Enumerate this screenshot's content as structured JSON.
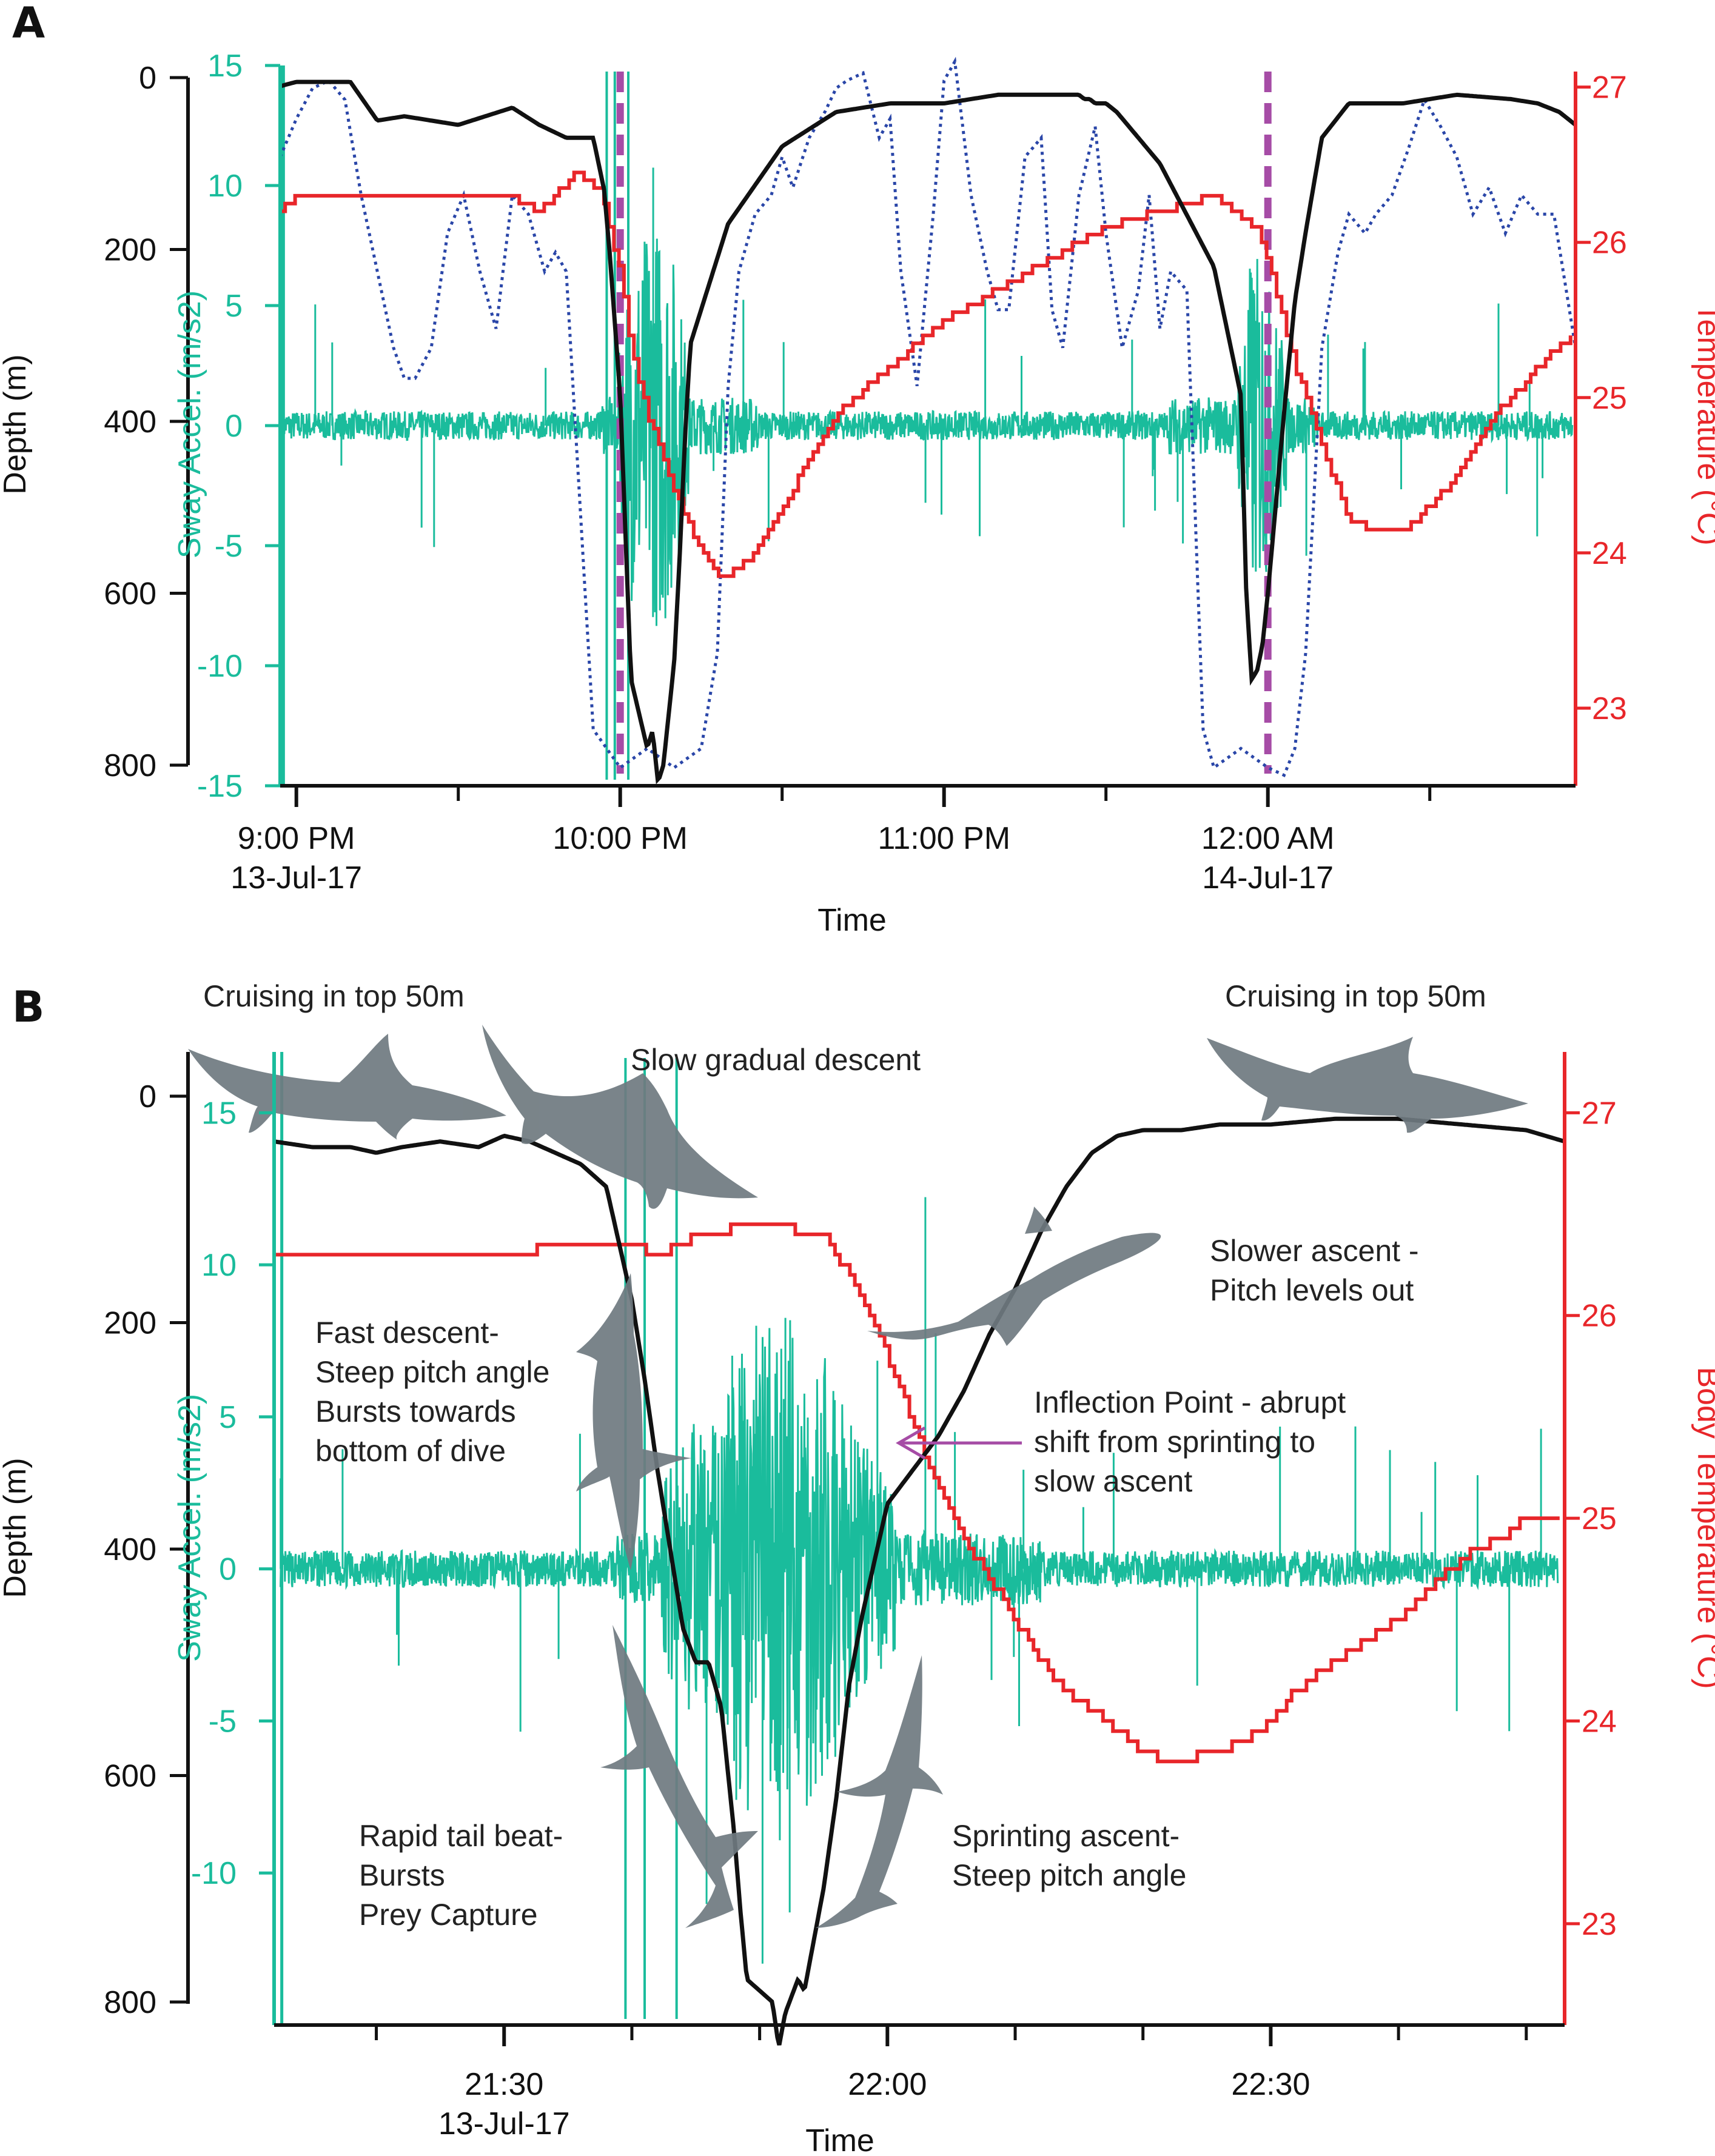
{
  "colors": {
    "depth": "#111111",
    "sway": "#1abc9c",
    "temperature": "#e8262a",
    "pitch": "#2a46a8",
    "marker": "#a64ca6",
    "arrow": "#a64ca6",
    "shark": "#6f7a80"
  },
  "chart_data": [
    {
      "panel": "A",
      "type": "line",
      "xlabel": "Time",
      "ylabel_left": "Depth (m)",
      "ylabel_sway": "Sway Accel. (m/s2)",
      "ylabel_right": "Temperature (°C)",
      "x_ticks": [
        {
          "line1": "9:00 PM",
          "line2": "13-Jul-17"
        },
        {
          "line1": "10:00 PM",
          "line2": ""
        },
        {
          "line1": "11:00 PM",
          "line2": ""
        },
        {
          "line1": "12:00 AM",
          "line2": "14-Jul-17"
        }
      ],
      "x_tick_minutes": [
        0,
        60,
        120,
        180
      ],
      "xlim_minutes": [
        -3,
        237
      ],
      "depth_ticks": [
        "0",
        "200",
        "400",
        "600",
        "800"
      ],
      "depth_lim": [
        0,
        800
      ],
      "sway_ticks": [
        "15",
        "10",
        "5",
        "0",
        "-5",
        "-10",
        "-15"
      ],
      "sway_lim": [
        -15,
        15
      ],
      "temp_ticks": [
        "27",
        "26",
        "25",
        "24",
        "23"
      ],
      "temp_lim": [
        22.5,
        27.1
      ],
      "vertical_markers_minutes": [
        60,
        180
      ],
      "depth_series": {
        "x_min": [
          -3,
          0,
          5,
          10,
          15,
          20,
          30,
          40,
          45,
          50,
          55,
          57,
          58,
          60,
          62,
          65,
          66,
          67,
          68,
          69,
          70,
          71,
          72,
          73,
          75,
          80,
          90,
          100,
          110,
          120,
          130,
          140,
          145,
          146,
          147,
          148,
          150,
          152,
          160,
          170,
          175,
          176,
          177,
          178,
          179,
          180,
          183,
          185,
          187,
          190,
          195,
          205,
          215,
          225,
          230,
          234,
          237
        ],
        "depth_m": [
          10,
          5,
          5,
          5,
          50,
          45,
          55,
          35,
          55,
          70,
          70,
          130,
          200,
          370,
          700,
          780,
          760,
          820,
          800,
          740,
          680,
          560,
          420,
          310,
          270,
          170,
          80,
          40,
          30,
          30,
          20,
          20,
          20,
          25,
          25,
          30,
          30,
          40,
          100,
          220,
          370,
          600,
          700,
          690,
          660,
          600,
          390,
          260,
          180,
          70,
          30,
          30,
          20,
          25,
          30,
          40,
          55
        ]
      },
      "temp_series": {
        "x_min": [
          -3,
          0,
          5,
          10,
          20,
          30,
          40,
          45,
          52,
          56,
          58,
          60,
          62,
          65,
          70,
          75,
          78,
          80,
          85,
          90,
          100,
          110,
          120,
          130,
          140,
          150,
          160,
          170,
          174,
          178,
          180,
          182,
          185,
          190,
          195,
          200,
          205,
          210,
          215,
          220,
          225,
          230,
          234,
          237
        ],
        "temp_c": [
          26.2,
          26.3,
          26.3,
          26.3,
          26.3,
          26.3,
          26.3,
          26.2,
          26.45,
          26.35,
          26.1,
          25.8,
          25.3,
          24.9,
          24.4,
          24.0,
          23.85,
          23.85,
          24.0,
          24.3,
          24.9,
          25.2,
          25.5,
          25.7,
          25.9,
          26.1,
          26.2,
          26.3,
          26.2,
          26.1,
          25.9,
          25.6,
          25.2,
          24.7,
          24.2,
          24.15,
          24.15,
          24.3,
          24.5,
          24.8,
          25.0,
          25.2,
          25.35,
          25.4
        ]
      },
      "pitch_series": {
        "x_min": [
          -3,
          0,
          3,
          6,
          9,
          12,
          15,
          18,
          20,
          22,
          25,
          28,
          31,
          34,
          37,
          40,
          43,
          46,
          48,
          50,
          55,
          60,
          65,
          70,
          75,
          78,
          80,
          82,
          85,
          88,
          90,
          92,
          95,
          98,
          100,
          102,
          105,
          108,
          110,
          112,
          115,
          118,
          120,
          122,
          125,
          128,
          130,
          132,
          135,
          138,
          140,
          142,
          145,
          148,
          150,
          153,
          156,
          158,
          160,
          162,
          165,
          168,
          170,
          175,
          180,
          183,
          185,
          187,
          190,
          193,
          195,
          198,
          200,
          203,
          206,
          209,
          212,
          215,
          218,
          221,
          224,
          227,
          230,
          233,
          237
        ],
        "pitch_deg": [
          70,
          80,
          88,
          90,
          85,
          60,
          40,
          20,
          12,
          12,
          20,
          50,
          60,
          40,
          25,
          60,
          55,
          40,
          45,
          40,
          -80,
          -90,
          -85,
          -90,
          -85,
          -60,
          10,
          40,
          55,
          60,
          70,
          62,
          75,
          82,
          88,
          90,
          92,
          75,
          80,
          40,
          10,
          55,
          90,
          95,
          60,
          40,
          30,
          30,
          70,
          75,
          30,
          20,
          60,
          78,
          50,
          20,
          35,
          60,
          25,
          40,
          35,
          -80,
          -90,
          -85,
          -90,
          -92,
          -85,
          -60,
          20,
          45,
          55,
          50,
          55,
          60,
          72,
          85,
          78,
          70,
          55,
          62,
          50,
          60,
          55,
          55,
          20
        ]
      }
    },
    {
      "panel": "B",
      "type": "line",
      "xlabel": "Time",
      "ylabel_left": "Depth (m)",
      "ylabel_sway": "Sway Accel. (m/s2)",
      "ylabel_right": "Body Temperature (°C)",
      "x_ticks": [
        {
          "line1": "21:30",
          "line2": "13-Jul-17"
        },
        {
          "line1": "22:00",
          "line2": ""
        },
        {
          "line1": "22:30",
          "line2": ""
        }
      ],
      "x_tick_minutes": [
        30,
        60,
        90
      ],
      "xlim_minutes": [
        12,
        113
      ],
      "depth_ticks": [
        "0",
        "200",
        "400",
        "600",
        "800"
      ],
      "depth_lim": [
        0,
        800
      ],
      "sway_ticks": [
        "15",
        "10",
        "5",
        "0",
        "-5",
        "-10"
      ],
      "sway_lim": [
        -15,
        17
      ],
      "temp_ticks": [
        "27",
        "26",
        "25",
        "24",
        "23"
      ],
      "temp_lim": [
        22.5,
        27.3
      ],
      "depth_series": {
        "x_min": [
          12,
          15,
          18,
          20,
          22,
          25,
          28,
          30,
          32,
          34,
          36,
          38,
          40,
          41,
          42,
          43,
          44,
          45,
          46,
          47,
          48,
          48.5,
          49,
          50,
          51,
          51.5,
          52,
          53,
          53.5,
          54,
          55,
          56,
          57,
          58,
          60,
          62,
          64,
          66,
          68,
          70,
          72,
          74,
          76,
          78,
          80,
          83,
          86,
          90,
          95,
          100,
          105,
          110,
          113
        ],
        "depth_m": [
          40,
          45,
          45,
          50,
          45,
          40,
          45,
          35,
          40,
          50,
          60,
          80,
          180,
          250,
          330,
          400,
          470,
          500,
          500,
          540,
          650,
          720,
          780,
          790,
          800,
          840,
          810,
          780,
          790,
          760,
          700,
          620,
          520,
          460,
          360,
          330,
          300,
          260,
          210,
          170,
          120,
          80,
          50,
          35,
          30,
          30,
          25,
          25,
          20,
          20,
          25,
          30,
          40
        ]
      },
      "temp_series": {
        "x_min": [
          12,
          30,
          35,
          40,
          42,
          45,
          50,
          55,
          57,
          60,
          63,
          66,
          70,
          73,
          76,
          80,
          82,
          86,
          89,
          92,
          95,
          100,
          103,
          106,
          108,
          110,
          113
        ],
        "temp_c": [
          26.3,
          26.3,
          26.35,
          26.35,
          26.3,
          26.4,
          26.45,
          26.4,
          26.2,
          25.8,
          25.3,
          24.9,
          24.5,
          24.2,
          24.05,
          23.85,
          23.8,
          23.85,
          23.95,
          24.15,
          24.3,
          24.5,
          24.7,
          24.85,
          24.9,
          25.0,
          25.0
        ]
      }
    }
  ],
  "panel_a": {
    "letter": "A"
  },
  "panel_b": {
    "letter": "B"
  },
  "annotations": {
    "cruising_left": "Cruising in top 50m",
    "cruising_right": "Cruising in top 50m",
    "slow_descent": "Slow gradual descent",
    "slower_ascent_1": "Slower ascent -",
    "slower_ascent_2": "Pitch levels out",
    "fast_descent_1": "Fast descent-",
    "fast_descent_2": "Steep pitch angle",
    "fast_descent_3": "Bursts towards",
    "fast_descent_4": "bottom of dive",
    "inflection_1": "Inflection Point - abrupt",
    "inflection_2": "shift from sprinting to",
    "inflection_3": "slow ascent",
    "rapid_1": "Rapid tail beat-",
    "rapid_2": "Bursts",
    "rapid_3": "Prey Capture",
    "sprint_1": "Sprinting ascent-",
    "sprint_2": "Steep pitch angle"
  }
}
